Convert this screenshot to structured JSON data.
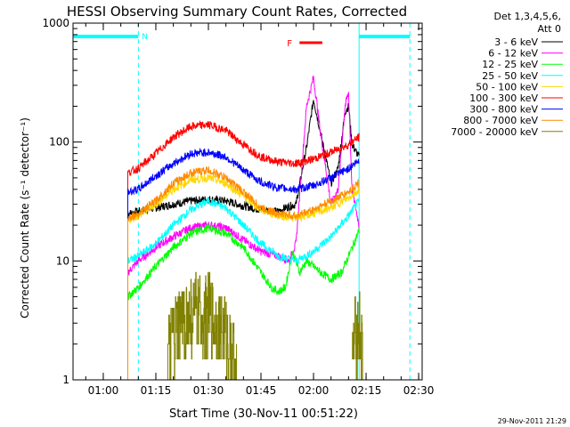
{
  "chart_data": {
    "type": "line",
    "title": "HESSI Observing Summary Count Rates, Corrected",
    "xlabel": "Start Time (30-Nov-11 00:51:22)",
    "ylabel": "Corrected Count Rate (s⁻¹ detector⁻¹)",
    "yscale": "log",
    "ylim": [
      1,
      1000
    ],
    "xlim": [
      "00:51:22",
      "02:31:00"
    ],
    "x_ticks": [
      "01:00",
      "01:15",
      "01:30",
      "01:45",
      "02:00",
      "02:15",
      "02:30"
    ],
    "y_ticks": [
      "1",
      "10",
      "100",
      "1000"
    ],
    "grid": false,
    "legend_position": "right",
    "legend_title": [
      "Det 1,3,4,5,6,",
      "Att 0"
    ],
    "footer": "29-Nov-2011 21:29",
    "annotations": {
      "night_marker": "N",
      "night_intervals": [
        [
          "00:51:22",
          "01:10:00"
        ],
        [
          "02:13:00",
          "02:27:30"
        ]
      ],
      "flare_marker": "F",
      "flare_interval": [
        "01:56:00",
        "02:02:30"
      ]
    },
    "series": [
      {
        "name": "3 - 6 keV",
        "color": "#000000",
        "segments": [
          {
            "t": [
              "01:07",
              "01:10",
              "01:15",
              "01:20",
              "01:25",
              "01:30",
              "01:35",
              "01:40",
              "01:45",
              "01:50",
              "01:52",
              "01:55",
              "01:58",
              "02:00",
              "02:02",
              "02:05",
              "02:07",
              "02:09",
              "02:10",
              "02:11",
              "02:13"
            ],
            "v": [
              25,
              26,
              28,
              30,
              32,
              33,
              32,
              29,
              27,
              26,
              28,
              30,
              90,
              230,
              120,
              45,
              60,
              180,
              200,
              95,
              75
            ]
          }
        ]
      },
      {
        "name": "6 - 12 keV",
        "color": "#ff00ff",
        "segments": [
          {
            "t": [
              "01:07",
              "01:10",
              "01:15",
              "01:20",
              "01:25",
              "01:30",
              "01:35",
              "01:40",
              "01:45",
              "01:50",
              "01:53",
              "01:55",
              "01:58",
              "02:00",
              "02:02",
              "02:05",
              "02:07",
              "02:09",
              "02:10",
              "02:11",
              "02:13"
            ],
            "v": [
              8,
              10,
              13,
              16,
              19,
              20,
              19,
              15,
              12,
              11,
              10,
              14,
              200,
              350,
              120,
              30,
              40,
              200,
              260,
              40,
              20
            ]
          }
        ]
      },
      {
        "name": "12 - 25 keV",
        "color": "#00ff00",
        "segments": [
          {
            "t": [
              "01:07",
              "01:10",
              "01:15",
              "01:20",
              "01:25",
              "01:30",
              "01:35",
              "01:40",
              "01:45",
              "01:48",
              "01:50",
              "01:52",
              "01:54",
              "01:56",
              "01:58",
              "02:00",
              "02:02",
              "02:05",
              "02:08",
              "02:10",
              "02:13"
            ],
            "v": [
              5,
              6,
              9,
              13,
              17,
              19,
              17,
              13,
              8,
              6,
              5.5,
              6,
              12,
              8,
              10,
              9,
              8,
              7,
              8,
              11,
              18
            ]
          }
        ]
      },
      {
        "name": "25 - 50 keV",
        "color": "#00ffff",
        "segments": [
          {
            "t": [
              "01:07",
              "01:10",
              "01:15",
              "01:20",
              "01:25",
              "01:30",
              "01:35",
              "01:40",
              "01:45",
              "01:50",
              "01:55",
              "02:00",
              "02:05",
              "02:10",
              "02:13"
            ],
            "v": [
              10,
              11,
              14,
              20,
              27,
              32,
              28,
              20,
              14,
              11,
              10,
              12,
              16,
              24,
              32
            ]
          }
        ]
      },
      {
        "name": "50 - 100 keV",
        "color": "#ffd700",
        "segments": [
          {
            "t": [
              "01:07",
              "01:10",
              "01:15",
              "01:20",
              "01:25",
              "01:30",
              "01:35",
              "01:40",
              "01:45",
              "01:50",
              "01:55",
              "02:00",
              "02:05",
              "02:10",
              "02:13"
            ],
            "v": [
              22,
              24,
              30,
              40,
              48,
              50,
              45,
              35,
              27,
              24,
              23,
              25,
              28,
              34,
              40
            ]
          }
        ]
      },
      {
        "name": "100 - 300 keV",
        "color": "#ff0000",
        "segments": [
          {
            "t": [
              "01:07",
              "01:10",
              "01:15",
              "01:20",
              "01:25",
              "01:30",
              "01:35",
              "01:40",
              "01:45",
              "01:50",
              "01:55",
              "02:00",
              "02:05",
              "02:10",
              "02:13"
            ],
            "v": [
              55,
              60,
              80,
              110,
              135,
              140,
              125,
              95,
              75,
              68,
              66,
              72,
              82,
              95,
              110
            ]
          }
        ]
      },
      {
        "name": "300 - 800 keV",
        "color": "#0000ff",
        "segments": [
          {
            "t": [
              "01:07",
              "01:10",
              "01:15",
              "01:20",
              "01:25",
              "01:30",
              "01:35",
              "01:40",
              "01:45",
              "01:50",
              "01:55",
              "02:00",
              "02:05",
              "02:10",
              "02:13"
            ],
            "v": [
              38,
              40,
              52,
              66,
              80,
              82,
              75,
              58,
              46,
              41,
              40,
              43,
              50,
              60,
              70
            ]
          }
        ]
      },
      {
        "name": "800 - 7000 keV",
        "color": "#ff8c00",
        "segments": [
          {
            "t": [
              "01:07",
              "01:10",
              "01:15",
              "01:20",
              "01:25",
              "01:30",
              "01:35",
              "01:40",
              "01:45",
              "01:50",
              "01:55",
              "02:00",
              "02:05",
              "02:10",
              "02:13"
            ],
            "v": [
              23,
              25,
              32,
              45,
              55,
              58,
              50,
              38,
              28,
              25,
              24,
              27,
              32,
              38,
              46
            ]
          }
        ]
      },
      {
        "name": "7000 - 20000 keV",
        "color": "#808000",
        "segments": [
          {
            "t": [
              "01:18",
              "01:19",
              "01:20",
              "01:22",
              "01:24",
              "01:26",
              "01:28",
              "01:30",
              "01:32",
              "01:34",
              "01:36",
              "01:37",
              "01:38"
            ],
            "v": [
              1,
              1.8,
              2.2,
              2.8,
              3.2,
              3.6,
              3.3,
              3.6,
              3.0,
              2.6,
              2.0,
              1.6,
              1
            ]
          },
          {
            "t": [
              "02:11",
              "02:12",
              "02:13",
              "02:14"
            ],
            "v": [
              1.5,
              2.5,
              2.8,
              1.5
            ]
          }
        ]
      }
    ]
  }
}
